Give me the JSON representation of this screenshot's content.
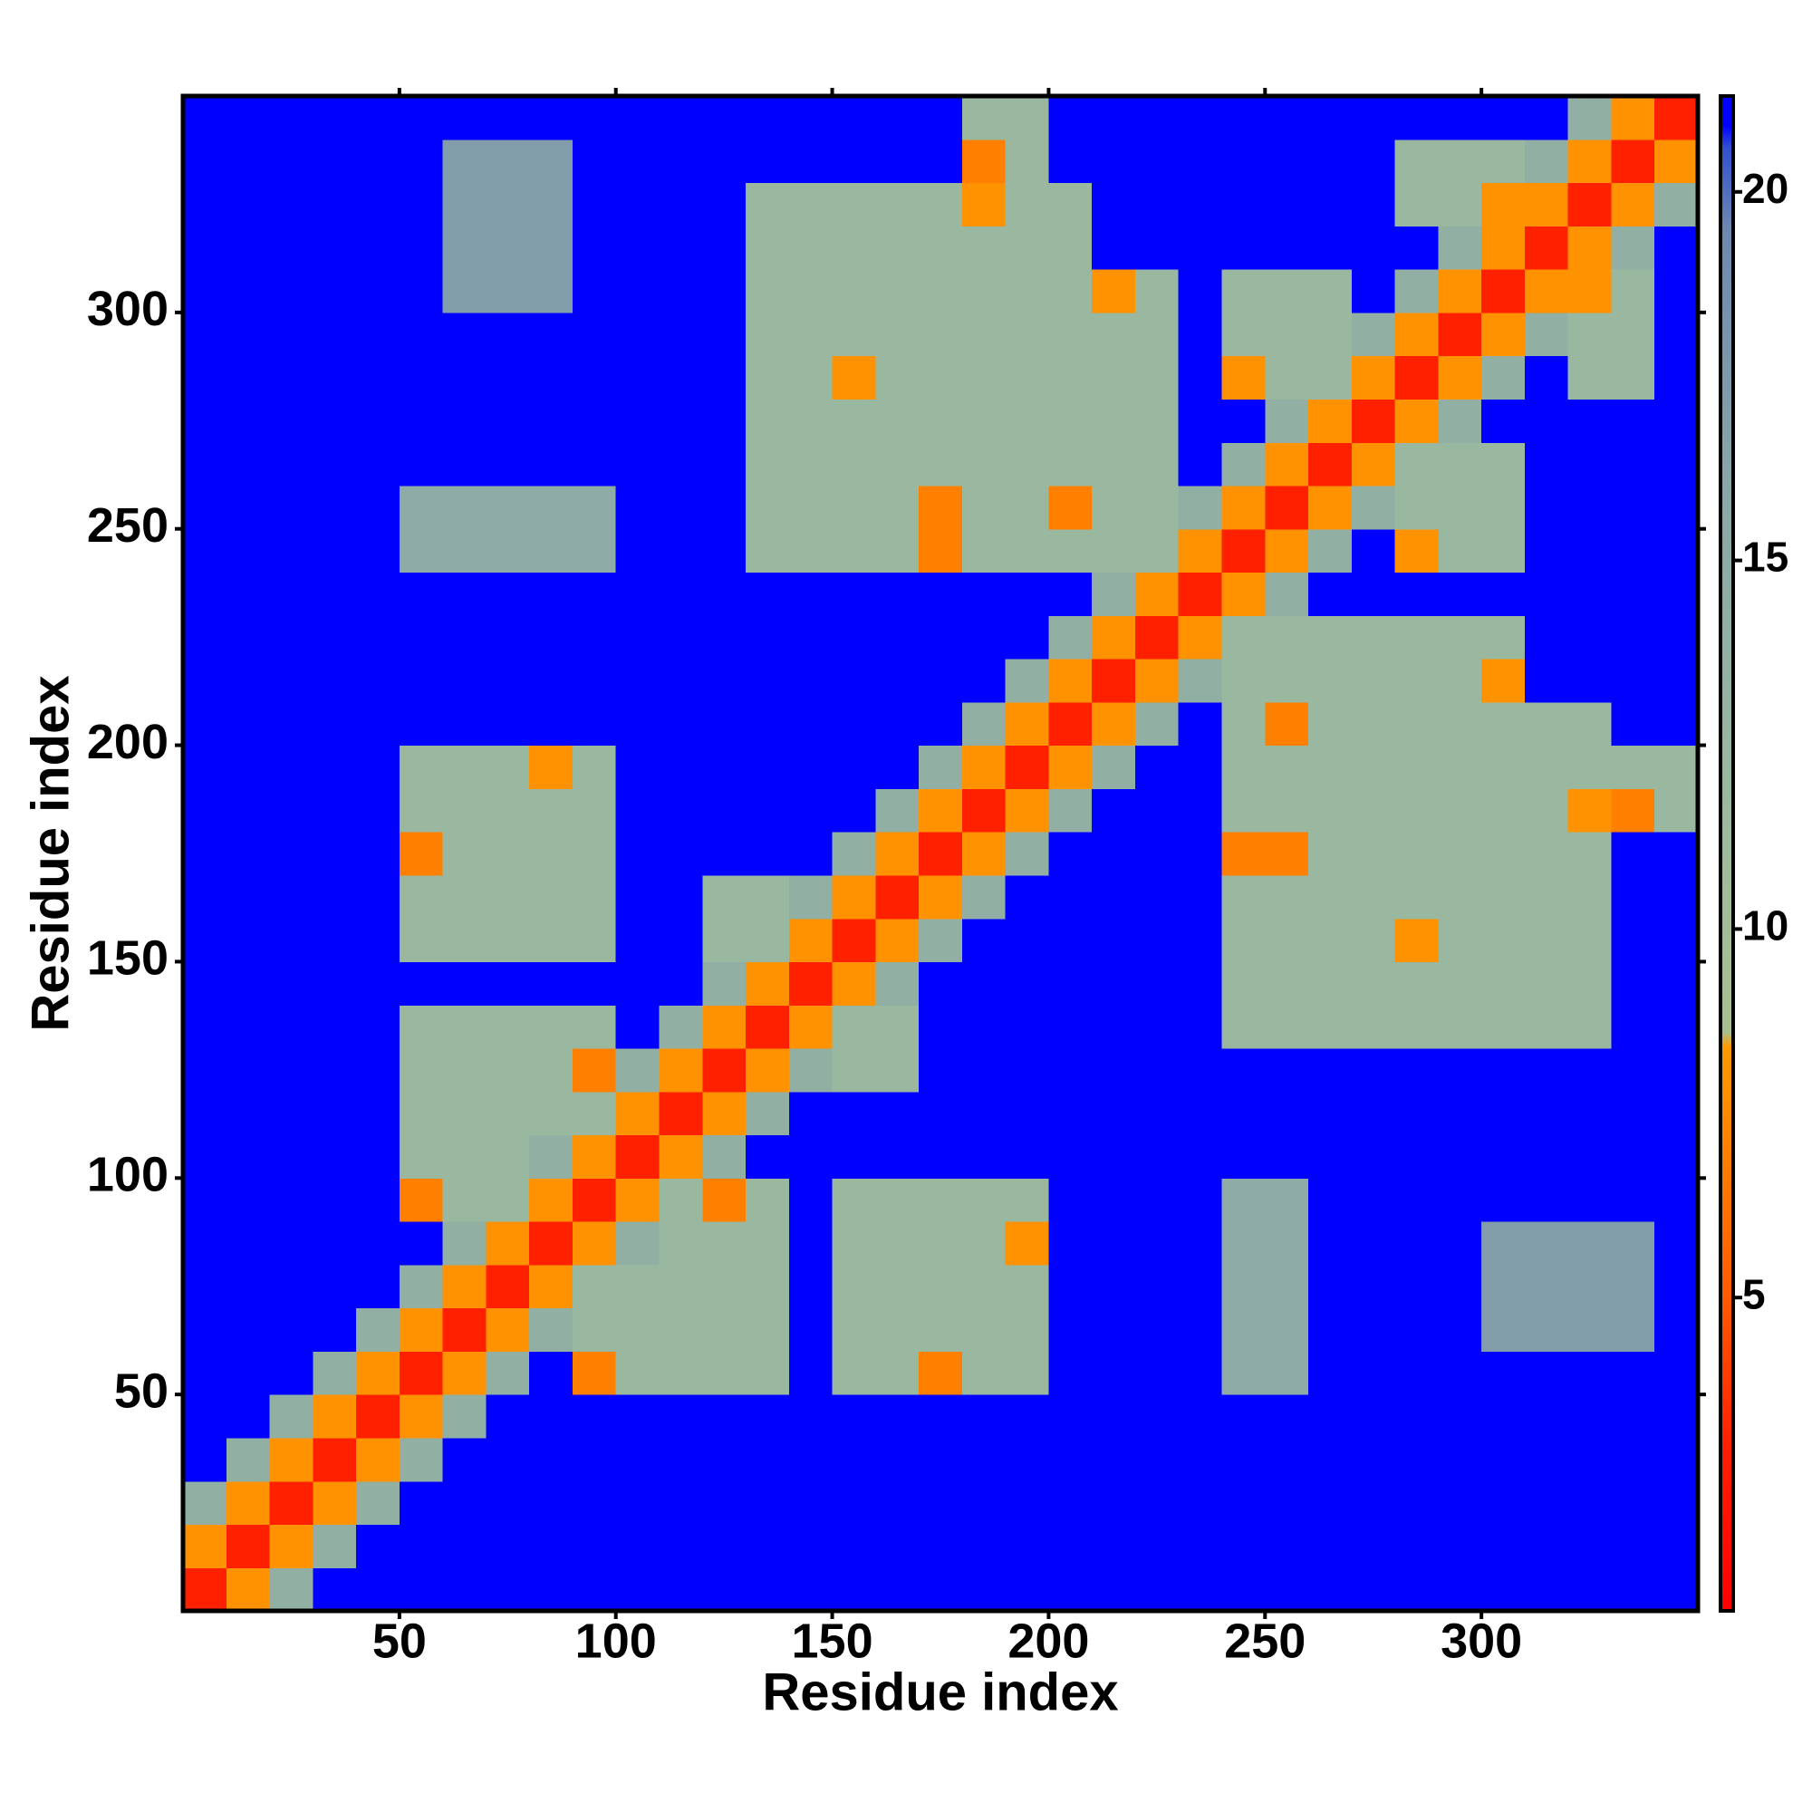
{
  "chart_data": {
    "type": "heatmap",
    "x_label": "Residue index",
    "y_label": "Residue index",
    "xbins": [
      0,
      10,
      20,
      30,
      40,
      50,
      60,
      70,
      80,
      90,
      100,
      110,
      120,
      130,
      140,
      150,
      160,
      170,
      180,
      190,
      200,
      210,
      220,
      230,
      240,
      250,
      260,
      270,
      280,
      290,
      300,
      310,
      320,
      330,
      340,
      350
    ],
    "ybins": [
      0,
      10,
      20,
      30,
      40,
      50,
      60,
      70,
      80,
      90,
      100,
      110,
      120,
      130,
      140,
      150,
      160,
      170,
      180,
      190,
      200,
      210,
      220,
      230,
      240,
      250,
      260,
      270,
      280,
      290,
      300,
      310,
      320,
      330,
      340,
      350
    ],
    "xlim": [
      0,
      350
    ],
    "ylim": [
      0,
      350
    ],
    "xticks": [
      50,
      100,
      150,
      200,
      250,
      300
    ],
    "yticks": [
      50,
      100,
      150,
      200,
      250,
      300
    ],
    "clim": [
      0.75,
      21.3
    ],
    "cticks": [
      5,
      10,
      15,
      20
    ],
    "colorscale": [
      [
        0.75,
        "#ff0000"
      ],
      [
        3,
        "#ff2000"
      ],
      [
        5,
        "#ff5a00"
      ],
      [
        8.4,
        "#ff9a00"
      ],
      [
        8.6,
        "#a8c090"
      ],
      [
        12,
        "#9ab8a0"
      ],
      [
        16,
        "#8aa6a8"
      ],
      [
        19.5,
        "#6d88b0"
      ],
      [
        20.6,
        "#3050d0"
      ],
      [
        20.9,
        "#0000ff"
      ],
      [
        21.3,
        "#0000ff"
      ]
    ],
    "values": [
      [
        3,
        8,
        14,
        21,
        21,
        21,
        21,
        21,
        21,
        21,
        21,
        21,
        21,
        21,
        21,
        21,
        21,
        21,
        21,
        21,
        21,
        21,
        21,
        21,
        21,
        21,
        21,
        21,
        21,
        21,
        21,
        21,
        21,
        21,
        21
      ],
      [
        8,
        3,
        8,
        14,
        21,
        21,
        21,
        21,
        21,
        21,
        21,
        21,
        21,
        21,
        21,
        21,
        21,
        21,
        21,
        21,
        21,
        21,
        21,
        21,
        21,
        21,
        21,
        21,
        21,
        21,
        21,
        21,
        21,
        21,
        21
      ],
      [
        14,
        8,
        3,
        8,
        14,
        21,
        21,
        21,
        21,
        21,
        21,
        21,
        21,
        21,
        21,
        21,
        21,
        21,
        21,
        21,
        21,
        21,
        21,
        21,
        21,
        21,
        21,
        21,
        21,
        21,
        21,
        21,
        21,
        21,
        21
      ],
      [
        21,
        14,
        8,
        3,
        8,
        14,
        21,
        21,
        21,
        21,
        21,
        21,
        21,
        21,
        21,
        21,
        21,
        21,
        21,
        21,
        21,
        21,
        21,
        21,
        21,
        21,
        21,
        21,
        21,
        21,
        21,
        21,
        21,
        21,
        21
      ],
      [
        21,
        21,
        14,
        8,
        3,
        8,
        14,
        21,
        21,
        21,
        21,
        21,
        21,
        21,
        21,
        21,
        21,
        21,
        21,
        21,
        21,
        21,
        21,
        21,
        21,
        21,
        21,
        21,
        21,
        21,
        21,
        21,
        21,
        21,
        21
      ],
      [
        21,
        21,
        21,
        14,
        8,
        3,
        8,
        14,
        21,
        7,
        12,
        12,
        12,
        12,
        21,
        12,
        12,
        7,
        12,
        12,
        21,
        21,
        21,
        21,
        15,
        15,
        21,
        21,
        21,
        21,
        21,
        21,
        21,
        21,
        21
      ],
      [
        21,
        21,
        21,
        21,
        14,
        8,
        3,
        8,
        14,
        12,
        12,
        12,
        12,
        12,
        21,
        12,
        12,
        12,
        12,
        12,
        21,
        21,
        21,
        21,
        15,
        15,
        21,
        21,
        21,
        21,
        17,
        17,
        17,
        17,
        21
      ],
      [
        21,
        21,
        21,
        21,
        21,
        14,
        8,
        3,
        8,
        12,
        12,
        12,
        12,
        12,
        21,
        12,
        12,
        12,
        12,
        12,
        21,
        21,
        21,
        21,
        15,
        15,
        21,
        21,
        21,
        21,
        17,
        17,
        17,
        17,
        21
      ],
      [
        21,
        21,
        21,
        21,
        21,
        21,
        14,
        8,
        3,
        8,
        14,
        12,
        12,
        12,
        21,
        12,
        12,
        12,
        12,
        8,
        21,
        21,
        21,
        21,
        15,
        15,
        21,
        21,
        21,
        21,
        17,
        17,
        17,
        17,
        21
      ],
      [
        21,
        21,
        21,
        21,
        21,
        7,
        12,
        12,
        8,
        3,
        8,
        12,
        7,
        12,
        21,
        12,
        12,
        12,
        12,
        12,
        21,
        21,
        21,
        21,
        15,
        15,
        21,
        21,
        21,
        21,
        21,
        21,
        21,
        21,
        21
      ],
      [
        21,
        21,
        21,
        21,
        21,
        12,
        12,
        12,
        14,
        8,
        3,
        8,
        14,
        21,
        21,
        21,
        21,
        21,
        21,
        21,
        21,
        21,
        21,
        21,
        21,
        21,
        21,
        21,
        21,
        21,
        21,
        21,
        21,
        21,
        21
      ],
      [
        21,
        21,
        21,
        21,
        21,
        12,
        12,
        12,
        12,
        12,
        8,
        3,
        8,
        14,
        21,
        21,
        21,
        21,
        21,
        21,
        21,
        21,
        21,
        21,
        21,
        21,
        21,
        21,
        21,
        21,
        21,
        21,
        21,
        21,
        21
      ],
      [
        21,
        21,
        21,
        21,
        21,
        12,
        12,
        12,
        12,
        7,
        14,
        8,
        3,
        8,
        14,
        12,
        12,
        21,
        21,
        21,
        21,
        21,
        21,
        21,
        21,
        21,
        21,
        21,
        21,
        21,
        21,
        21,
        21,
        21,
        21
      ],
      [
        21,
        21,
        21,
        21,
        21,
        12,
        12,
        12,
        12,
        12,
        21,
        14,
        8,
        3,
        8,
        12,
        12,
        21,
        21,
        21,
        21,
        21,
        21,
        21,
        12,
        12,
        12,
        12,
        12,
        12,
        12,
        12,
        12,
        21,
        21
      ],
      [
        21,
        21,
        21,
        21,
        21,
        21,
        21,
        21,
        21,
        21,
        21,
        21,
        14,
        8,
        3,
        8,
        14,
        21,
        21,
        21,
        21,
        21,
        21,
        21,
        12,
        12,
        12,
        12,
        12,
        12,
        12,
        12,
        12,
        21,
        21
      ],
      [
        21,
        21,
        21,
        21,
        21,
        12,
        12,
        12,
        12,
        12,
        21,
        21,
        12,
        12,
        8,
        3,
        8,
        14,
        21,
        21,
        21,
        21,
        21,
        21,
        12,
        12,
        12,
        12,
        8,
        12,
        12,
        12,
        12,
        21,
        21
      ],
      [
        21,
        21,
        21,
        21,
        21,
        12,
        12,
        12,
        12,
        12,
        21,
        21,
        12,
        12,
        14,
        8,
        3,
        8,
        14,
        21,
        21,
        21,
        21,
        21,
        12,
        12,
        12,
        12,
        12,
        12,
        12,
        12,
        12,
        21,
        21
      ],
      [
        21,
        21,
        21,
        21,
        21,
        7,
        12,
        12,
        12,
        12,
        21,
        21,
        21,
        21,
        21,
        14,
        8,
        3,
        8,
        14,
        21,
        21,
        21,
        21,
        7,
        7,
        12,
        12,
        12,
        12,
        12,
        12,
        12,
        21,
        21
      ],
      [
        21,
        21,
        21,
        21,
        21,
        12,
        12,
        12,
        12,
        12,
        21,
        21,
        21,
        21,
        21,
        21,
        14,
        8,
        3,
        8,
        14,
        21,
        21,
        21,
        12,
        12,
        12,
        12,
        12,
        12,
        12,
        12,
        8,
        7,
        12
      ],
      [
        21,
        21,
        21,
        21,
        21,
        12,
        12,
        12,
        8,
        12,
        21,
        21,
        21,
        21,
        21,
        21,
        21,
        14,
        8,
        3,
        8,
        14,
        21,
        21,
        12,
        12,
        12,
        12,
        12,
        12,
        12,
        12,
        12,
        12,
        12
      ],
      [
        21,
        21,
        21,
        21,
        21,
        21,
        21,
        21,
        21,
        21,
        21,
        21,
        21,
        21,
        21,
        21,
        21,
        21,
        14,
        8,
        3,
        8,
        14,
        21,
        12,
        7,
        12,
        12,
        12,
        12,
        12,
        12,
        12,
        21,
        21
      ],
      [
        21,
        21,
        21,
        21,
        21,
        21,
        21,
        21,
        21,
        21,
        21,
        21,
        21,
        21,
        21,
        21,
        21,
        21,
        21,
        14,
        8,
        3,
        8,
        14,
        12,
        12,
        12,
        12,
        12,
        12,
        8,
        21,
        21,
        21,
        21
      ],
      [
        21,
        21,
        21,
        21,
        21,
        21,
        21,
        21,
        21,
        21,
        21,
        21,
        21,
        21,
        21,
        21,
        21,
        21,
        21,
        21,
        14,
        8,
        3,
        8,
        12,
        12,
        12,
        12,
        12,
        12,
        12,
        21,
        21,
        21,
        21
      ],
      [
        21,
        21,
        21,
        21,
        21,
        21,
        21,
        21,
        21,
        21,
        21,
        21,
        21,
        21,
        21,
        21,
        21,
        21,
        21,
        21,
        21,
        14,
        8,
        3,
        8,
        14,
        21,
        21,
        21,
        21,
        21,
        21,
        21,
        21,
        21
      ],
      [
        21,
        21,
        21,
        21,
        21,
        15,
        15,
        15,
        15,
        15,
        21,
        21,
        21,
        12,
        12,
        12,
        12,
        7,
        12,
        12,
        12,
        12,
        12,
        8,
        3,
        8,
        14,
        21,
        8,
        12,
        12,
        21,
        21,
        21,
        21
      ],
      [
        21,
        21,
        21,
        21,
        21,
        15,
        15,
        15,
        15,
        15,
        21,
        21,
        21,
        12,
        12,
        12,
        12,
        7,
        12,
        12,
        7,
        12,
        12,
        14,
        8,
        3,
        8,
        14,
        12,
        12,
        12,
        21,
        21,
        21,
        21
      ],
      [
        21,
        21,
        21,
        21,
        21,
        21,
        21,
        21,
        21,
        21,
        21,
        21,
        21,
        12,
        12,
        12,
        12,
        12,
        12,
        12,
        12,
        12,
        12,
        21,
        14,
        8,
        3,
        8,
        12,
        12,
        12,
        21,
        21,
        21,
        21
      ],
      [
        21,
        21,
        21,
        21,
        21,
        21,
        21,
        21,
        21,
        21,
        21,
        21,
        21,
        12,
        12,
        12,
        12,
        12,
        12,
        12,
        12,
        12,
        12,
        21,
        21,
        14,
        8,
        3,
        8,
        14,
        21,
        21,
        21,
        21,
        21
      ],
      [
        21,
        21,
        21,
        21,
        21,
        21,
        21,
        21,
        21,
        21,
        21,
        21,
        21,
        12,
        12,
        8,
        12,
        12,
        12,
        12,
        12,
        12,
        12,
        21,
        8,
        12,
        12,
        8,
        3,
        8,
        14,
        21,
        12,
        12,
        21
      ],
      [
        21,
        21,
        21,
        21,
        21,
        21,
        21,
        21,
        21,
        21,
        21,
        21,
        21,
        12,
        12,
        12,
        12,
        12,
        12,
        12,
        12,
        12,
        12,
        21,
        12,
        12,
        12,
        14,
        8,
        3,
        8,
        14,
        12,
        12,
        21
      ],
      [
        21,
        21,
        21,
        21,
        21,
        21,
        17,
        17,
        17,
        21,
        21,
        21,
        21,
        12,
        12,
        12,
        12,
        12,
        12,
        12,
        12,
        8,
        12,
        21,
        12,
        12,
        12,
        21,
        14,
        8,
        3,
        8,
        8,
        12,
        21
      ],
      [
        21,
        21,
        21,
        21,
        21,
        21,
        17,
        17,
        17,
        21,
        21,
        21,
        21,
        12,
        12,
        12,
        12,
        12,
        12,
        12,
        12,
        21,
        21,
        21,
        21,
        21,
        21,
        21,
        21,
        14,
        8,
        3,
        8,
        14,
        21
      ],
      [
        21,
        21,
        21,
        21,
        21,
        21,
        17,
        17,
        17,
        21,
        21,
        21,
        21,
        12,
        12,
        12,
        12,
        12,
        8,
        12,
        12,
        21,
        21,
        21,
        21,
        21,
        21,
        21,
        12,
        12,
        8,
        8,
        3,
        8,
        14
      ],
      [
        21,
        21,
        21,
        21,
        21,
        21,
        17,
        17,
        17,
        21,
        21,
        21,
        21,
        21,
        21,
        21,
        21,
        21,
        7,
        12,
        21,
        21,
        21,
        21,
        21,
        21,
        21,
        21,
        12,
        12,
        12,
        14,
        8,
        3,
        8
      ],
      [
        21,
        21,
        21,
        21,
        21,
        21,
        21,
        21,
        21,
        21,
        21,
        21,
        21,
        21,
        21,
        21,
        21,
        21,
        12,
        12,
        21,
        21,
        21,
        21,
        21,
        21,
        21,
        21,
        21,
        21,
        21,
        21,
        14,
        8,
        3
      ]
    ]
  }
}
